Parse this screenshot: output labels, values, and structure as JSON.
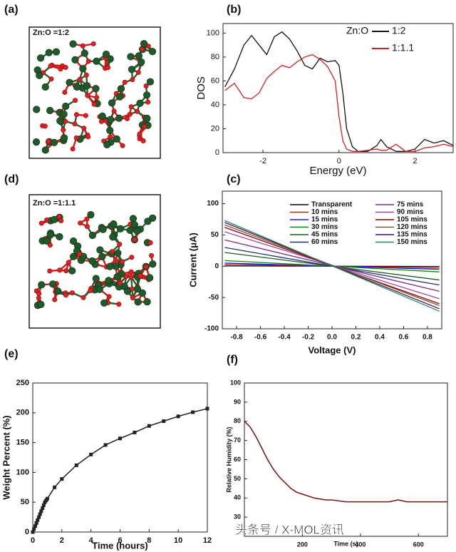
{
  "panels": [
    {
      "label": "(a)",
      "caption": "Zn:O =1:2"
    },
    {
      "label": "(d)",
      "caption": "Zn:O =1:1.1"
    }
  ],
  "watermark": "头条号 / X-MOL资讯",
  "chart_data": [
    {
      "type": "line",
      "panel_label": "(b)",
      "xlabel": "Energy (eV)",
      "ylabel": "DOS",
      "x": [
        -3.0,
        -2.75,
        -2.5,
        -2.3,
        -2.1,
        -1.9,
        -1.7,
        -1.5,
        -1.3,
        -1.1,
        -0.9,
        -0.7,
        -0.5,
        -0.3,
        -0.1,
        0.0,
        0.1,
        0.2,
        0.35,
        0.5,
        0.75,
        1.0,
        1.1,
        1.25,
        1.5,
        1.75,
        2.0,
        2.25,
        2.5,
        2.75,
        3.0
      ],
      "series": [
        {
          "name": "1:2",
          "color": "#111111",
          "values": [
            55,
            70,
            90,
            98,
            90,
            82,
            97,
            101,
            95,
            85,
            73,
            70,
            79,
            76,
            77,
            73,
            50,
            20,
            5,
            1,
            1,
            6,
            11,
            5,
            1,
            1,
            3,
            11,
            8,
            10,
            6
          ]
        },
        {
          "name": "1:1.1",
          "color": "#d62020",
          "values": [
            52,
            58,
            46,
            45,
            50,
            62,
            68,
            73,
            71,
            76,
            80,
            82,
            78,
            72,
            60,
            30,
            10,
            3,
            1,
            1,
            2,
            3,
            2,
            2,
            7,
            1,
            1,
            4,
            5,
            7,
            5
          ]
        }
      ],
      "legend_title": "Zn:O",
      "legend": "upper right",
      "xlim": [
        -3.05,
        3.0
      ],
      "ylim": [
        0,
        108
      ],
      "xticks": [
        -2,
        0,
        2
      ],
      "yticks": [
        0,
        20,
        40,
        60,
        80,
        100
      ]
    },
    {
      "type": "line",
      "panel_label": "(c)",
      "xlabel": "Voltage (V)",
      "ylabel": "Current (μA)",
      "x": [
        -0.9,
        0.9
      ],
      "series": [
        {
          "name": "Transparent",
          "color": "#000000",
          "values": [
            0.5,
            -0.5
          ]
        },
        {
          "name": "10 mins",
          "color": "#e01010",
          "values": [
            3,
            -3
          ]
        },
        {
          "name": "15 mins",
          "color": "#1a1aff",
          "values": [
            5,
            -5
          ]
        },
        {
          "name": "30 mins",
          "color": "#0a8a0a",
          "values": [
            9,
            -9
          ]
        },
        {
          "name": "45 mins",
          "color": "#1f5a1f",
          "values": [
            22,
            -22
          ]
        },
        {
          "name": "60 mins",
          "color": "#203070",
          "values": [
            30,
            -30
          ]
        },
        {
          "name": "75 mins",
          "color": "#7a2a8a",
          "values": [
            42,
            -40
          ]
        },
        {
          "name": "90 mins",
          "color": "#9a4aaa",
          "values": [
            55,
            -52
          ]
        },
        {
          "name": "105 mins",
          "color": "#8b0000",
          "values": [
            62,
            -60
          ]
        },
        {
          "name": "120 mins",
          "color": "#7a5a2a",
          "values": [
            66,
            -63
          ]
        },
        {
          "name": "135 mins",
          "color": "#4a0a6a",
          "values": [
            70,
            -68
          ]
        },
        {
          "name": "150 mins",
          "color": "#2e8b57",
          "values": [
            73,
            -72
          ]
        }
      ],
      "legend": "upper center",
      "xlim": [
        -0.92,
        0.92
      ],
      "ylim": [
        -100,
        120
      ],
      "xticks": [
        -0.8,
        -0.6,
        -0.4,
        -0.2,
        {
          "value": 0,
          "label": "0.0"
        },
        0.2,
        0.4,
        0.6,
        0.8
      ],
      "yticks": [
        -100,
        -50,
        0,
        50,
        100
      ]
    },
    {
      "type": "line",
      "panel_label": "(e)",
      "xlabel": "Time (hours)",
      "ylabel": "Weight Percent (%)",
      "marker": "square",
      "color": "#222222",
      "x": [
        0,
        0.08,
        0.17,
        0.25,
        0.33,
        0.42,
        0.5,
        0.58,
        0.67,
        0.75,
        0.83,
        0.92,
        1,
        1.5,
        2,
        3,
        4,
        5,
        6,
        7,
        8,
        9,
        10,
        11,
        12
      ],
      "values": [
        0,
        5,
        10,
        15,
        20,
        25,
        30,
        35,
        40,
        45,
        50,
        53,
        56,
        75,
        89,
        112,
        130,
        146,
        157,
        167,
        178,
        186,
        194,
        201,
        207
      ],
      "xlim": [
        0,
        12
      ],
      "ylim": [
        0,
        250
      ],
      "xticks": [
        0,
        2,
        4,
        6,
        8,
        10,
        12
      ],
      "yticks": [
        0,
        50,
        100,
        150,
        200,
        250
      ]
    },
    {
      "type": "line",
      "panel_label": "(f)",
      "xlabel": "Time (s)",
      "ylabel": "Relative Humidity (%)",
      "color": "#7a1010",
      "x": [
        0,
        20,
        40,
        60,
        80,
        100,
        120,
        140,
        160,
        180,
        200,
        220,
        240,
        260,
        280,
        300,
        350,
        400,
        450,
        500,
        530,
        560,
        600,
        650,
        700
      ],
      "values": [
        80,
        77,
        72,
        66,
        60,
        55,
        51,
        48,
        45,
        43,
        42,
        41,
        40,
        39.5,
        39,
        39,
        38,
        38,
        38,
        38,
        39,
        38,
        38,
        38,
        38
      ],
      "xlim": [
        0,
        700
      ],
      "ylim": [
        20,
        100
      ],
      "xticks": [
        200,
        400,
        600
      ],
      "yticks": [
        30,
        40,
        50,
        60,
        70,
        80,
        90,
        100
      ]
    }
  ]
}
